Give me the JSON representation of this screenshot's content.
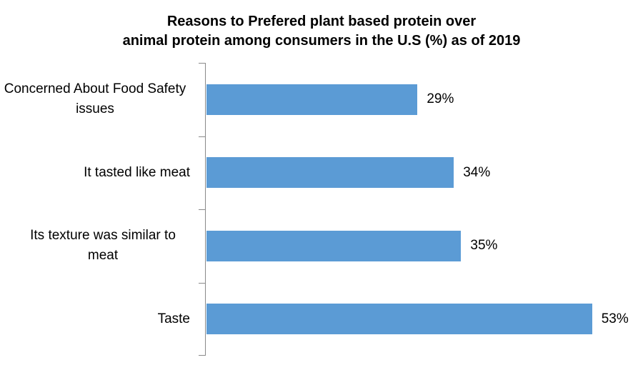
{
  "chart_data": {
    "type": "bar",
    "orientation": "horizontal",
    "title_lines": [
      "Reasons to Prefered plant based protein over",
      "animal protein  among consumers in the U.S (%) as of 2019"
    ],
    "title": "Reasons to Prefered plant based protein over animal protein among consumers in the U.S (%) as of 2019",
    "categories": [
      "Concerned About Food Safety issues",
      "It tasted like meat",
      "Its texture was similar to meat",
      "Taste"
    ],
    "values": [
      29,
      34,
      35,
      53
    ],
    "value_labels": [
      "29%",
      "34%",
      "35%",
      "53%"
    ],
    "xlabel": "",
    "ylabel": "",
    "xlim": [
      0,
      60
    ],
    "grid": false,
    "legend": false,
    "bar_color": "#5B9BD5",
    "axis_color": "#8A8A8A",
    "text_color": "#000000",
    "background_color": "#FFFFFF"
  }
}
